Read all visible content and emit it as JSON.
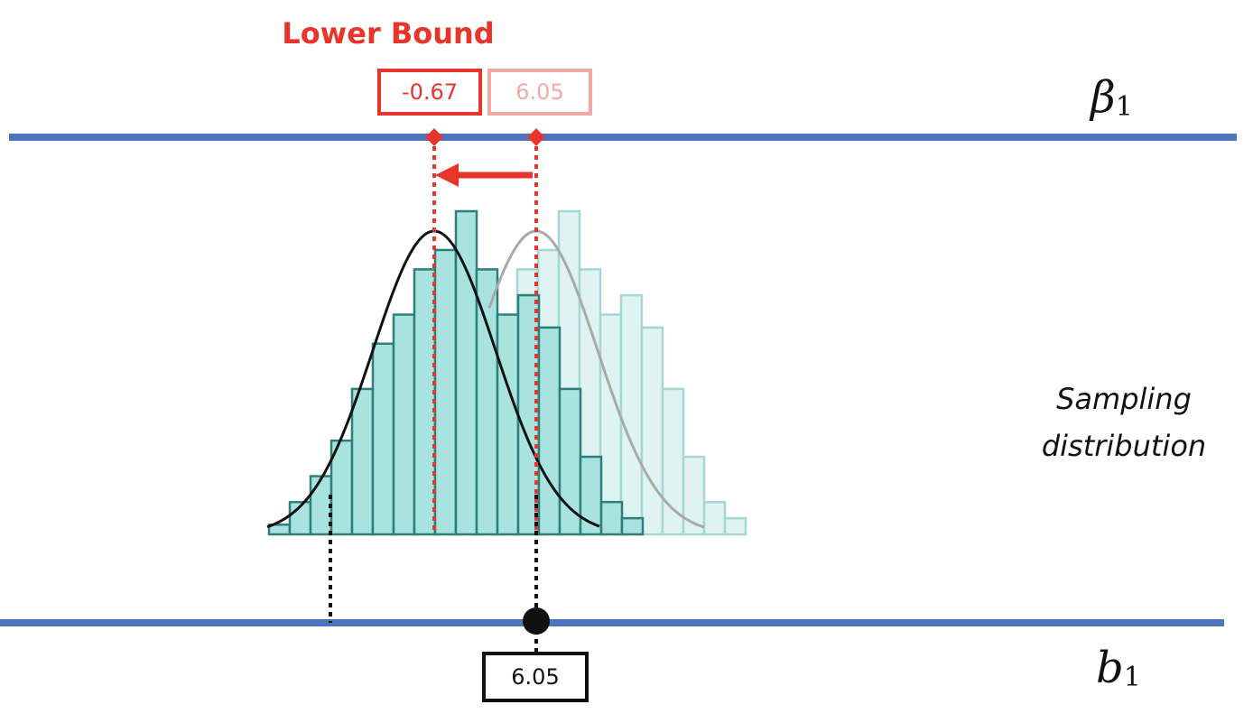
{
  "labels": {
    "lower_bound_title": "Lower Bound",
    "lower_bound_value": "-0.67",
    "original_value": "6.05",
    "sample_value": "6.05",
    "beta_symbol": "β",
    "beta_subscript": "1",
    "b_symbol": "b",
    "b_subscript": "1",
    "sampling_line1": "Sampling",
    "sampling_line2": "distribution"
  },
  "colors": {
    "axis_line": "#4f74bf",
    "highlight": "#e8352b",
    "faded_highlight": "#f1a9a6",
    "histogram_fill": "#a9e3e0",
    "histogram_stroke": "#2e7f7c",
    "faded_fill": "#def3f2",
    "faded_stroke": "#a7d6d3",
    "curve": "#111111",
    "faded_curve": "#a9a9a9"
  },
  "histogram_relative_heights": [
    0.03,
    0.1,
    0.18,
    0.29,
    0.45,
    0.59,
    0.68,
    0.82,
    0.88,
    1.0,
    0.82,
    0.68,
    0.74,
    0.64,
    0.45,
    0.24,
    0.1,
    0.05
  ]
}
